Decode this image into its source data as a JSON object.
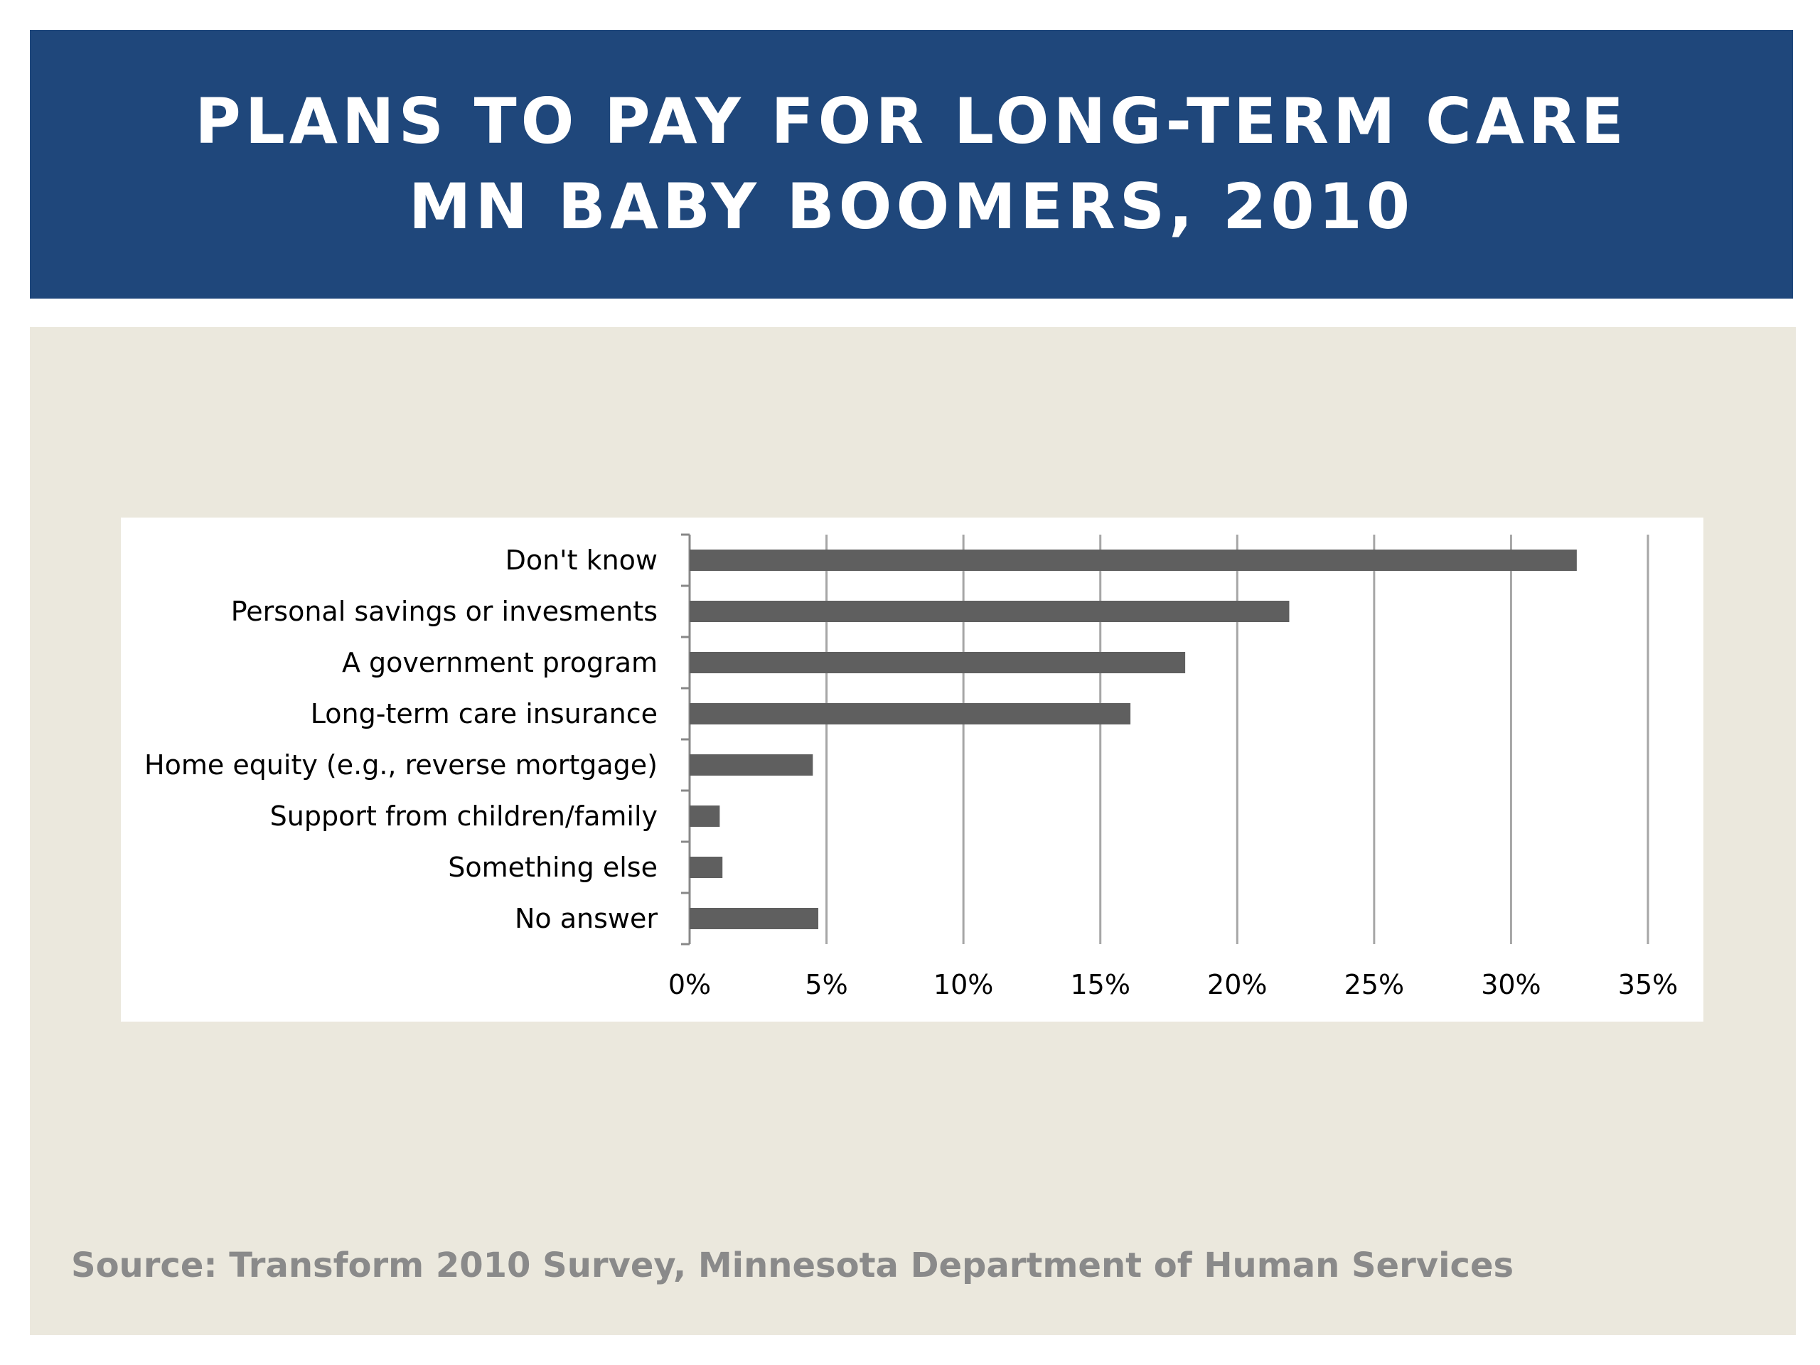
{
  "header": {
    "title_line1": "PLANS TO PAY FOR LONG-TERM CARE",
    "title_line2": "MN BABY BOOMERS, 2010"
  },
  "source": "Source: Transform 2010 Survey, Minnesota Department of Human Services",
  "colors": {
    "header_bg": "#1f477b",
    "panel_bg": "#ebe8dd",
    "bar": "#5f5f5f",
    "gridline": "#a6a6a6"
  },
  "chart_data": {
    "type": "bar",
    "orientation": "horizontal",
    "title": "PLANS TO PAY FOR LONG-TERM CARE MN BABY BOOMERS, 2010",
    "categories": [
      "Don't know",
      "Personal savings or invesments",
      "A government program",
      "Long-term care insurance",
      "Home equity (e.g., reverse mortgage)",
      "Support from children/family",
      "Something else",
      "No answer"
    ],
    "values": [
      32.4,
      21.9,
      18.1,
      16.1,
      4.5,
      1.1,
      1.2,
      4.7
    ],
    "unit": "%",
    "xlim": [
      0,
      35
    ],
    "xticks": [
      "0%",
      "5%",
      "10%",
      "15%",
      "20%",
      "25%",
      "30%",
      "35%"
    ],
    "xlabel": "",
    "ylabel": "",
    "grid": true,
    "legend": "none"
  }
}
